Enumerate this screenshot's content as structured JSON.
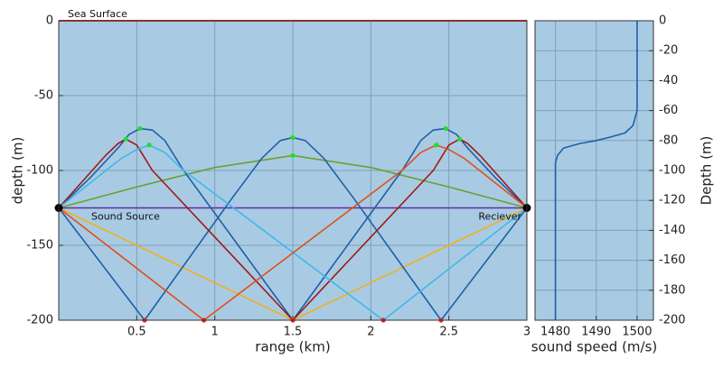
{
  "chart_data": [
    {
      "type": "line",
      "xlabel": "range (km)",
      "ylabel": "depth (m)",
      "xlim": [
        0,
        3
      ],
      "ylim": [
        -200,
        0
      ],
      "xticks": [
        0.5,
        1,
        1.5,
        2,
        2.5,
        3
      ],
      "yticks": [
        0,
        -50,
        -100,
        -150,
        -200
      ],
      "grid": true,
      "background": "#a8cbe3",
      "surface": {
        "label": "Sea Surface",
        "y": 0,
        "color": "#e03030"
      },
      "source": {
        "label": "Sound Source",
        "x": 0,
        "y": -125,
        "color": "#000000"
      },
      "receiver": {
        "label": "Reciever",
        "x": 3,
        "y": -125,
        "color": "#000000"
      },
      "series": [
        {
          "color": "#6a2aa0",
          "x": [
            0,
            3
          ],
          "y": [
            -125,
            -125
          ]
        },
        {
          "color": "#6aa030",
          "x": [
            0,
            0.5,
            1,
            1.5,
            2,
            2.5,
            3
          ],
          "y": [
            -125,
            -111,
            -98,
            -90,
            -98,
            -111,
            -125
          ]
        },
        {
          "color": "#f0b020",
          "x": [
            0,
            1.5,
            3
          ],
          "y": [
            -125,
            -200,
            -125
          ]
        },
        {
          "color": "#1f5fa8",
          "x": [
            0,
            0.2,
            0.38,
            0.45,
            0.52,
            0.6,
            0.68,
            0.8,
            1.5,
            2.2,
            2.32,
            2.4,
            2.48,
            2.55,
            2.62,
            2.8,
            3
          ],
          "y": [
            -125,
            -105,
            -85,
            -76,
            -72,
            -73,
            -80,
            -100,
            -200,
            -100,
            -80,
            -73,
            -72,
            -76,
            -85,
            -105,
            -125
          ]
        },
        {
          "color": "#1f5fa8",
          "x": [
            0,
            0.55,
            1.1,
            1.3,
            1.42,
            1.5,
            1.58,
            1.7,
            1.9,
            2.45,
            3
          ],
          "y": [
            -125,
            -200,
            -120,
            -92,
            -80,
            -78,
            -80,
            -92,
            -120,
            -200,
            -125
          ]
        },
        {
          "color": "#a01818",
          "x": [
            0,
            0.3,
            0.38,
            0.43,
            0.5,
            0.6,
            1.5,
            2.4,
            2.5,
            2.57,
            2.62,
            2.7,
            3
          ],
          "y": [
            -125,
            -90,
            -82,
            -79,
            -83,
            -100,
            -200,
            -100,
            -83,
            -79,
            -82,
            -90,
            -125
          ]
        },
        {
          "color": "#3fb8e8",
          "x": [
            0,
            0.4,
            0.5,
            0.58,
            0.68,
            0.8,
            2.08,
            3
          ],
          "y": [
            -125,
            -92,
            -86,
            -83,
            -88,
            -100,
            -200,
            -125
          ]
        },
        {
          "color": "#e0501a",
          "x": [
            0,
            0.93,
            2.2,
            2.32,
            2.42,
            2.5,
            2.6,
            3
          ],
          "y": [
            -125,
            -200,
            -100,
            -88,
            -83,
            -86,
            -92,
            -125
          ]
        }
      ],
      "markers": [
        {
          "color": "#22e022",
          "x": [
            0.52,
            0.43,
            0.58,
            1.5,
            1.5,
            2.48,
            2.42,
            2.57
          ],
          "y": [
            -72,
            -79,
            -83,
            -78,
            -90,
            -72,
            -83,
            -79
          ]
        },
        {
          "color": "#e82020",
          "x": [
            0.55,
            0.93,
            1.5,
            2.08,
            2.45
          ],
          "y": [
            -200,
            -200,
            -200,
            -200,
            -200
          ]
        }
      ]
    },
    {
      "type": "line",
      "xlabel": "sound speed (m/s)",
      "ylabel": "Depth (m)",
      "xlim": [
        1475,
        1504
      ],
      "ylim": [
        -200,
        0
      ],
      "xticks": [
        1480,
        1490,
        1500
      ],
      "yticks": [
        0,
        -20,
        -40,
        -60,
        -80,
        -100,
        -120,
        -140,
        -160,
        -180,
        -200
      ],
      "grid": true,
      "background": "#a8cbe3",
      "series": [
        {
          "color": "#1f5fa8",
          "x": [
            1500,
            1500,
            1499,
            1497,
            1493,
            1490,
            1486,
            1482,
            1480.5,
            1480,
            1480
          ],
          "y": [
            0,
            -60,
            -70,
            -75,
            -78,
            -80,
            -82,
            -85,
            -90,
            -95,
            -200
          ]
        }
      ]
    }
  ]
}
